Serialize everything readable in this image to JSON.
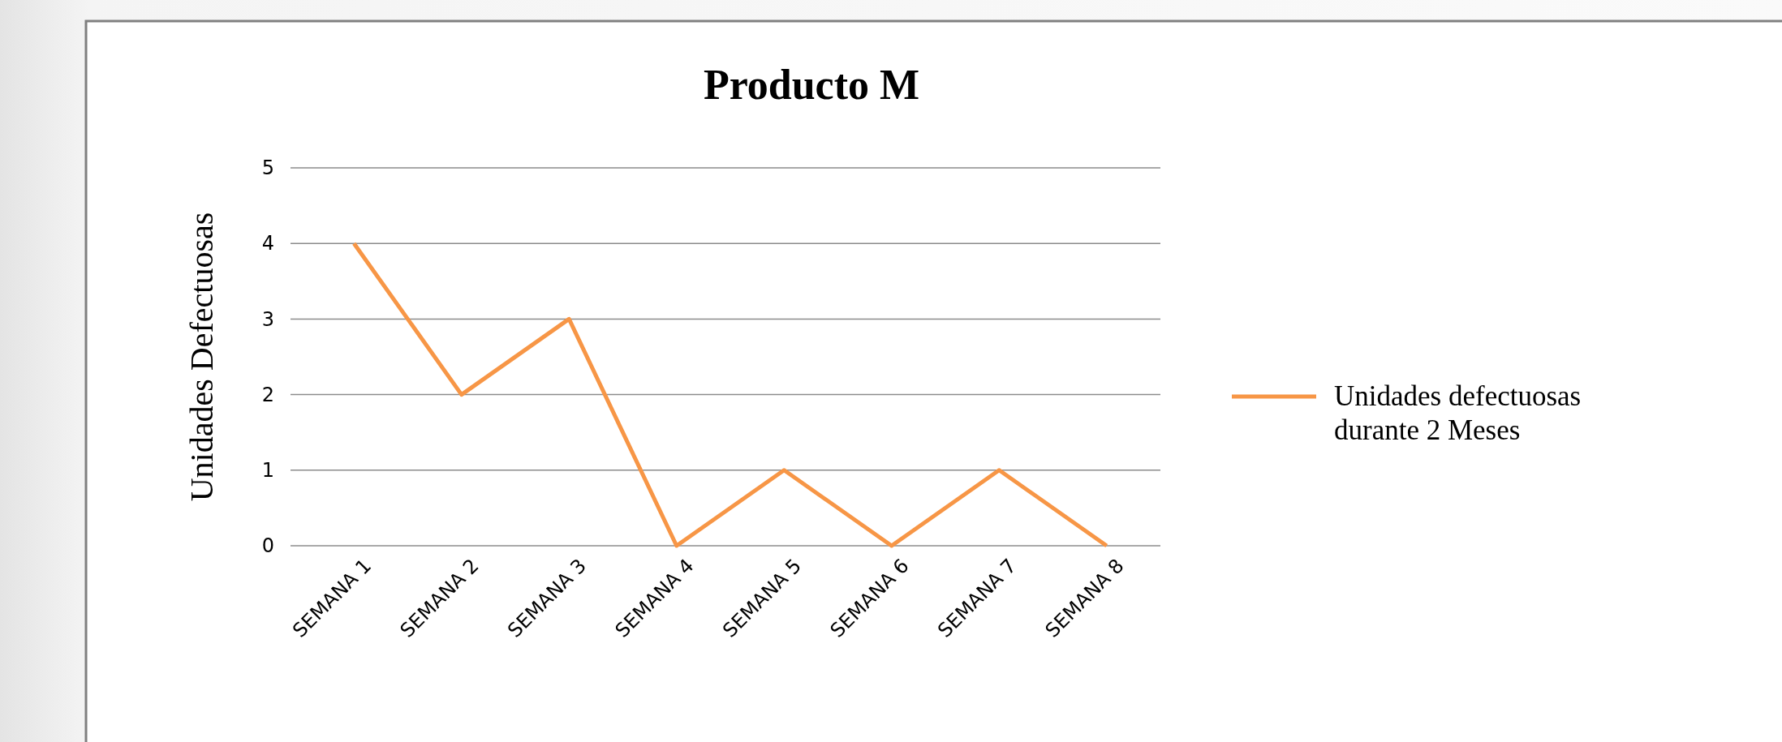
{
  "chart_data": {
    "type": "line",
    "title": "Producto M",
    "ylabel": "Unidades Defectuosas",
    "categories": [
      "SEMANA 1",
      "SEMANA 2",
      "SEMANA 3",
      "SEMANA 4",
      "SEMANA 5",
      "SEMANA 6",
      "SEMANA 7",
      "SEMANA 8"
    ],
    "series": [
      {
        "name": "Unidades defectuosas durante 2 Meses",
        "color": "#f79646",
        "values": [
          4,
          2,
          3,
          0,
          1,
          0,
          1,
          0
        ]
      }
    ],
    "ylim": [
      0,
      5
    ],
    "yticks": [
      0,
      1,
      2,
      3,
      4,
      5
    ],
    "grid": "y",
    "legend": "right",
    "marker": "none",
    "line_style": "solid"
  }
}
